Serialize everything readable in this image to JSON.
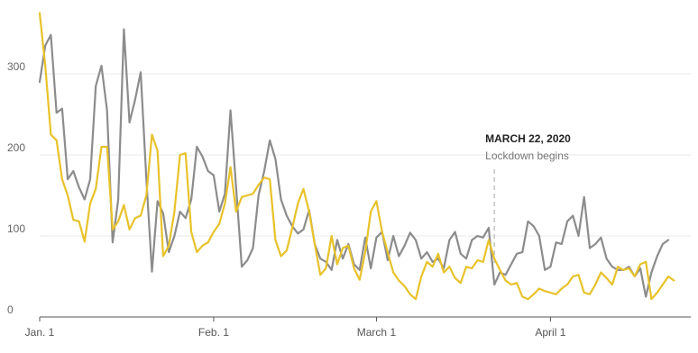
{
  "chart_data": {
    "type": "line",
    "x_ticks": [
      "Jan. 1",
      "Feb. 1",
      "March 1",
      "April 1"
    ],
    "y_ticks": [
      "0",
      "100",
      "200",
      "300"
    ],
    "ylim": [
      0,
      380
    ],
    "x_range": [
      "2020-01-01",
      "2020-04-26"
    ],
    "grid": "horizontal",
    "annotation": {
      "date": "2020-03-22",
      "title": "MARCH 22, 2020",
      "subtitle": "Lockdown begins"
    },
    "series": [
      {
        "color": "#8c8c8c",
        "points": [
          [
            "2020-01-01",
            290
          ],
          [
            "2020-01-02",
            335
          ],
          [
            "2020-01-03",
            348
          ],
          [
            "2020-01-04",
            252
          ],
          [
            "2020-01-05",
            257
          ],
          [
            "2020-01-06",
            170
          ],
          [
            "2020-01-07",
            180
          ],
          [
            "2020-01-08",
            160
          ],
          [
            "2020-01-09",
            145
          ],
          [
            "2020-01-10",
            170
          ],
          [
            "2020-01-11",
            285
          ],
          [
            "2020-01-12",
            310
          ],
          [
            "2020-01-13",
            255
          ],
          [
            "2020-01-14",
            92
          ],
          [
            "2020-01-15",
            145
          ],
          [
            "2020-01-16",
            355
          ],
          [
            "2020-01-17",
            240
          ],
          [
            "2020-01-18",
            268
          ],
          [
            "2020-01-19",
            302
          ],
          [
            "2020-01-20",
            170
          ],
          [
            "2020-01-21",
            56
          ],
          [
            "2020-01-22",
            143
          ],
          [
            "2020-01-23",
            128
          ],
          [
            "2020-01-24",
            80
          ],
          [
            "2020-01-25",
            100
          ],
          [
            "2020-01-26",
            130
          ],
          [
            "2020-01-27",
            122
          ],
          [
            "2020-01-28",
            145
          ],
          [
            "2020-01-29",
            210
          ],
          [
            "2020-01-30",
            198
          ],
          [
            "2020-01-31",
            180
          ],
          [
            "2020-02-01",
            175
          ],
          [
            "2020-02-02",
            130
          ],
          [
            "2020-02-03",
            152
          ],
          [
            "2020-02-04",
            255
          ],
          [
            "2020-02-05",
            160
          ],
          [
            "2020-02-06",
            62
          ],
          [
            "2020-02-07",
            70
          ],
          [
            "2020-02-08",
            85
          ],
          [
            "2020-02-09",
            150
          ],
          [
            "2020-02-10",
            180
          ],
          [
            "2020-02-11",
            218
          ],
          [
            "2020-02-12",
            195
          ],
          [
            "2020-02-13",
            145
          ],
          [
            "2020-02-14",
            125
          ],
          [
            "2020-02-15",
            112
          ],
          [
            "2020-02-16",
            103
          ],
          [
            "2020-02-17",
            108
          ],
          [
            "2020-02-18",
            132
          ],
          [
            "2020-02-19",
            90
          ],
          [
            "2020-02-20",
            72
          ],
          [
            "2020-02-21",
            68
          ],
          [
            "2020-02-22",
            58
          ],
          [
            "2020-02-23",
            95
          ],
          [
            "2020-02-24",
            72
          ],
          [
            "2020-02-25",
            90
          ],
          [
            "2020-02-26",
            65
          ],
          [
            "2020-02-27",
            58
          ],
          [
            "2020-02-28",
            98
          ],
          [
            "2020-02-29",
            60
          ],
          [
            "2020-03-01",
            98
          ],
          [
            "2020-03-02",
            105
          ],
          [
            "2020-03-03",
            70
          ],
          [
            "2020-03-04",
            100
          ],
          [
            "2020-03-05",
            75
          ],
          [
            "2020-03-06",
            88
          ],
          [
            "2020-03-07",
            104
          ],
          [
            "2020-03-08",
            95
          ],
          [
            "2020-03-09",
            72
          ],
          [
            "2020-03-10",
            80
          ],
          [
            "2020-03-11",
            68
          ],
          [
            "2020-03-12",
            72
          ],
          [
            "2020-03-13",
            60
          ],
          [
            "2020-03-14",
            95
          ],
          [
            "2020-03-15",
            105
          ],
          [
            "2020-03-16",
            78
          ],
          [
            "2020-03-17",
            72
          ],
          [
            "2020-03-18",
            95
          ],
          [
            "2020-03-19",
            100
          ],
          [
            "2020-03-20",
            98
          ],
          [
            "2020-03-21",
            110
          ],
          [
            "2020-03-22",
            40
          ],
          [
            "2020-03-23",
            55
          ],
          [
            "2020-03-24",
            52
          ],
          [
            "2020-03-25",
            65
          ],
          [
            "2020-03-26",
            78
          ],
          [
            "2020-03-27",
            80
          ],
          [
            "2020-03-28",
            118
          ],
          [
            "2020-03-29",
            112
          ],
          [
            "2020-03-30",
            100
          ],
          [
            "2020-03-31",
            58
          ],
          [
            "2020-04-01",
            62
          ],
          [
            "2020-04-02",
            92
          ],
          [
            "2020-04-03",
            90
          ],
          [
            "2020-04-04",
            118
          ],
          [
            "2020-04-05",
            125
          ],
          [
            "2020-04-06",
            100
          ],
          [
            "2020-04-07",
            148
          ],
          [
            "2020-04-08",
            85
          ],
          [
            "2020-04-09",
            90
          ],
          [
            "2020-04-10",
            98
          ],
          [
            "2020-04-11",
            72
          ],
          [
            "2020-04-12",
            62
          ],
          [
            "2020-04-13",
            58
          ],
          [
            "2020-04-14",
            58
          ],
          [
            "2020-04-15",
            62
          ],
          [
            "2020-04-16",
            50
          ],
          [
            "2020-04-17",
            60
          ],
          [
            "2020-04-18",
            25
          ],
          [
            "2020-04-19",
            55
          ],
          [
            "2020-04-20",
            75
          ],
          [
            "2020-04-21",
            90
          ],
          [
            "2020-04-22",
            95
          ]
        ]
      },
      {
        "color": "#e8c22a",
        "points": [
          [
            "2020-01-01",
            375
          ],
          [
            "2020-01-02",
            310
          ],
          [
            "2020-01-03",
            225
          ],
          [
            "2020-01-04",
            218
          ],
          [
            "2020-01-05",
            170
          ],
          [
            "2020-01-06",
            150
          ],
          [
            "2020-01-07",
            120
          ],
          [
            "2020-01-08",
            118
          ],
          [
            "2020-01-09",
            93
          ],
          [
            "2020-01-10",
            140
          ],
          [
            "2020-01-11",
            158
          ],
          [
            "2020-01-12",
            210
          ],
          [
            "2020-01-13",
            210
          ],
          [
            "2020-01-14",
            108
          ],
          [
            "2020-01-15",
            118
          ],
          [
            "2020-01-16",
            138
          ],
          [
            "2020-01-17",
            108
          ],
          [
            "2020-01-18",
            122
          ],
          [
            "2020-01-19",
            125
          ],
          [
            "2020-01-20",
            150
          ],
          [
            "2020-01-21",
            225
          ],
          [
            "2020-01-22",
            205
          ],
          [
            "2020-01-23",
            75
          ],
          [
            "2020-01-24",
            88
          ],
          [
            "2020-01-25",
            130
          ],
          [
            "2020-01-26",
            200
          ],
          [
            "2020-01-27",
            202
          ],
          [
            "2020-01-28",
            105
          ],
          [
            "2020-01-29",
            80
          ],
          [
            "2020-01-30",
            88
          ],
          [
            "2020-01-31",
            92
          ],
          [
            "2020-02-01",
            105
          ],
          [
            "2020-02-02",
            115
          ],
          [
            "2020-02-03",
            140
          ],
          [
            "2020-02-04",
            185
          ],
          [
            "2020-02-05",
            130
          ],
          [
            "2020-02-06",
            148
          ],
          [
            "2020-02-07",
            150
          ],
          [
            "2020-02-08",
            152
          ],
          [
            "2020-02-09",
            163
          ],
          [
            "2020-02-10",
            172
          ],
          [
            "2020-02-11",
            170
          ],
          [
            "2020-02-12",
            95
          ],
          [
            "2020-02-13",
            75
          ],
          [
            "2020-02-14",
            82
          ],
          [
            "2020-02-15",
            110
          ],
          [
            "2020-02-16",
            140
          ],
          [
            "2020-02-17",
            158
          ],
          [
            "2020-02-18",
            130
          ],
          [
            "2020-02-19",
            90
          ],
          [
            "2020-02-20",
            52
          ],
          [
            "2020-02-21",
            60
          ],
          [
            "2020-02-22",
            100
          ],
          [
            "2020-02-23",
            65
          ],
          [
            "2020-02-24",
            85
          ],
          [
            "2020-02-25",
            88
          ],
          [
            "2020-02-26",
            60
          ],
          [
            "2020-02-27",
            46
          ],
          [
            "2020-02-28",
            80
          ],
          [
            "2020-02-29",
            130
          ],
          [
            "2020-03-01",
            143
          ],
          [
            "2020-03-02",
            105
          ],
          [
            "2020-03-03",
            80
          ],
          [
            "2020-03-04",
            55
          ],
          [
            "2020-03-05",
            45
          ],
          [
            "2020-03-06",
            38
          ],
          [
            "2020-03-07",
            28
          ],
          [
            "2020-03-08",
            22
          ],
          [
            "2020-03-09",
            50
          ],
          [
            "2020-03-10",
            68
          ],
          [
            "2020-03-11",
            62
          ],
          [
            "2020-03-12",
            78
          ],
          [
            "2020-03-13",
            55
          ],
          [
            "2020-03-14",
            62
          ],
          [
            "2020-03-15",
            48
          ],
          [
            "2020-03-16",
            42
          ],
          [
            "2020-03-17",
            62
          ],
          [
            "2020-03-18",
            60
          ],
          [
            "2020-03-19",
            70
          ],
          [
            "2020-03-20",
            68
          ],
          [
            "2020-03-21",
            95
          ],
          [
            "2020-03-22",
            72
          ],
          [
            "2020-03-23",
            58
          ],
          [
            "2020-03-24",
            45
          ],
          [
            "2020-03-25",
            40
          ],
          [
            "2020-03-26",
            42
          ],
          [
            "2020-03-27",
            25
          ],
          [
            "2020-03-28",
            22
          ],
          [
            "2020-03-29",
            28
          ],
          [
            "2020-03-30",
            35
          ],
          [
            "2020-03-31",
            32
          ],
          [
            "2020-04-01",
            30
          ],
          [
            "2020-04-02",
            28
          ],
          [
            "2020-04-03",
            35
          ],
          [
            "2020-04-04",
            40
          ],
          [
            "2020-04-05",
            50
          ],
          [
            "2020-04-06",
            52
          ],
          [
            "2020-04-07",
            30
          ],
          [
            "2020-04-08",
            28
          ],
          [
            "2020-04-09",
            40
          ],
          [
            "2020-04-10",
            55
          ],
          [
            "2020-04-11",
            48
          ],
          [
            "2020-04-12",
            40
          ],
          [
            "2020-04-13",
            62
          ],
          [
            "2020-04-14",
            58
          ],
          [
            "2020-04-15",
            60
          ],
          [
            "2020-04-16",
            50
          ],
          [
            "2020-04-17",
            65
          ],
          [
            "2020-04-18",
            68
          ],
          [
            "2020-04-19",
            22
          ],
          [
            "2020-04-20",
            30
          ],
          [
            "2020-04-21",
            40
          ],
          [
            "2020-04-22",
            50
          ],
          [
            "2020-04-23",
            45
          ]
        ]
      }
    ]
  }
}
